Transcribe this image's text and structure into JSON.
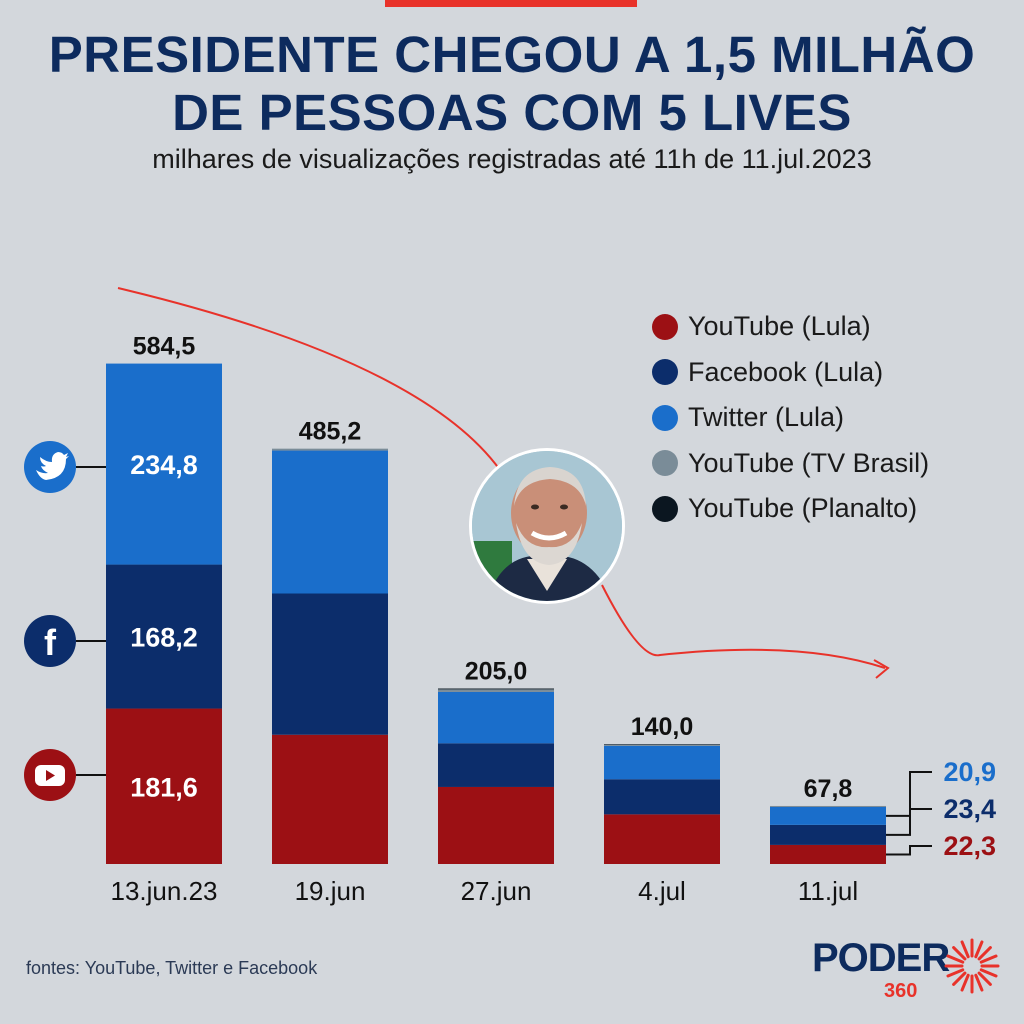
{
  "title_lines": [
    "PRESIDENTE CHEGOU A 1,5 MILHÃO",
    "DE PESSOAS COM 5 LIVES"
  ],
  "subtitle": "milhares de visualizações registradas até 11h de 11.jul.2023",
  "source": "fontes: YouTube, Twitter e Facebook",
  "logo": {
    "word": "PODER",
    "number": "360"
  },
  "photo": {
    "description_icon": "person-portrait"
  },
  "colors": {
    "youtube_lula": "#9c1014",
    "facebook_lula": "#0c2d6b",
    "twitter_lula": "#1a6ecb",
    "youtube_tv_brasil": "#7a8c98",
    "youtube_planalto": "#0b1620",
    "accent": "#e8322a",
    "title": "#0d2b5e"
  },
  "icons": [
    "twitter-icon",
    "facebook-icon",
    "youtube-icon"
  ],
  "chart_data": {
    "type": "bar",
    "stacked": true,
    "title": "PRESIDENTE CHEGOU A 1,5 MILHÃO DE PESSOAS COM 5 LIVES",
    "subtitle": "milhares de visualizações registradas até 11h de 11.jul.2023",
    "unit": "milhares de visualizações",
    "categories": [
      "13.jun.23",
      "19.jun",
      "27.jun",
      "4.jul",
      "11.jul"
    ],
    "totals": [
      584.5,
      485.2,
      205.0,
      140.0,
      67.8
    ],
    "total_labels": [
      "584,5",
      "485,2",
      "205,0",
      "140,0",
      "67,8"
    ],
    "series": [
      {
        "name": "YouTube (Lula)",
        "values": [
          181.6,
          151.0,
          90.0,
          58.0,
          22.3
        ]
      },
      {
        "name": "Facebook (Lula)",
        "values": [
          168.2,
          165.0,
          51.0,
          41.0,
          23.4
        ]
      },
      {
        "name": "Twitter (Lula)",
        "values": [
          234.8,
          167.0,
          60.0,
          39.0,
          20.9
        ]
      },
      {
        "name": "YouTube (TV Brasil)",
        "values": [
          0.0,
          2.2,
          3.0,
          1.6,
          1.2
        ]
      },
      {
        "name": "YouTube (Planalto)",
        "values": [
          0.0,
          0.0,
          1.0,
          0.4,
          0.0
        ]
      }
    ],
    "segment_labels": [
      {
        "category": 0,
        "series": 2,
        "text": "234,8"
      },
      {
        "category": 0,
        "series": 1,
        "text": "168,2"
      },
      {
        "category": 0,
        "series": 0,
        "text": "181,6"
      }
    ],
    "side_labels": [
      {
        "category": 4,
        "series": 2,
        "text": "20,9"
      },
      {
        "category": 4,
        "series": 1,
        "text": "23,4"
      },
      {
        "category": 4,
        "series": 0,
        "text": "22,3"
      }
    ],
    "ylim": [
      0,
      650
    ],
    "legend_position": "top-right",
    "grid": false
  }
}
